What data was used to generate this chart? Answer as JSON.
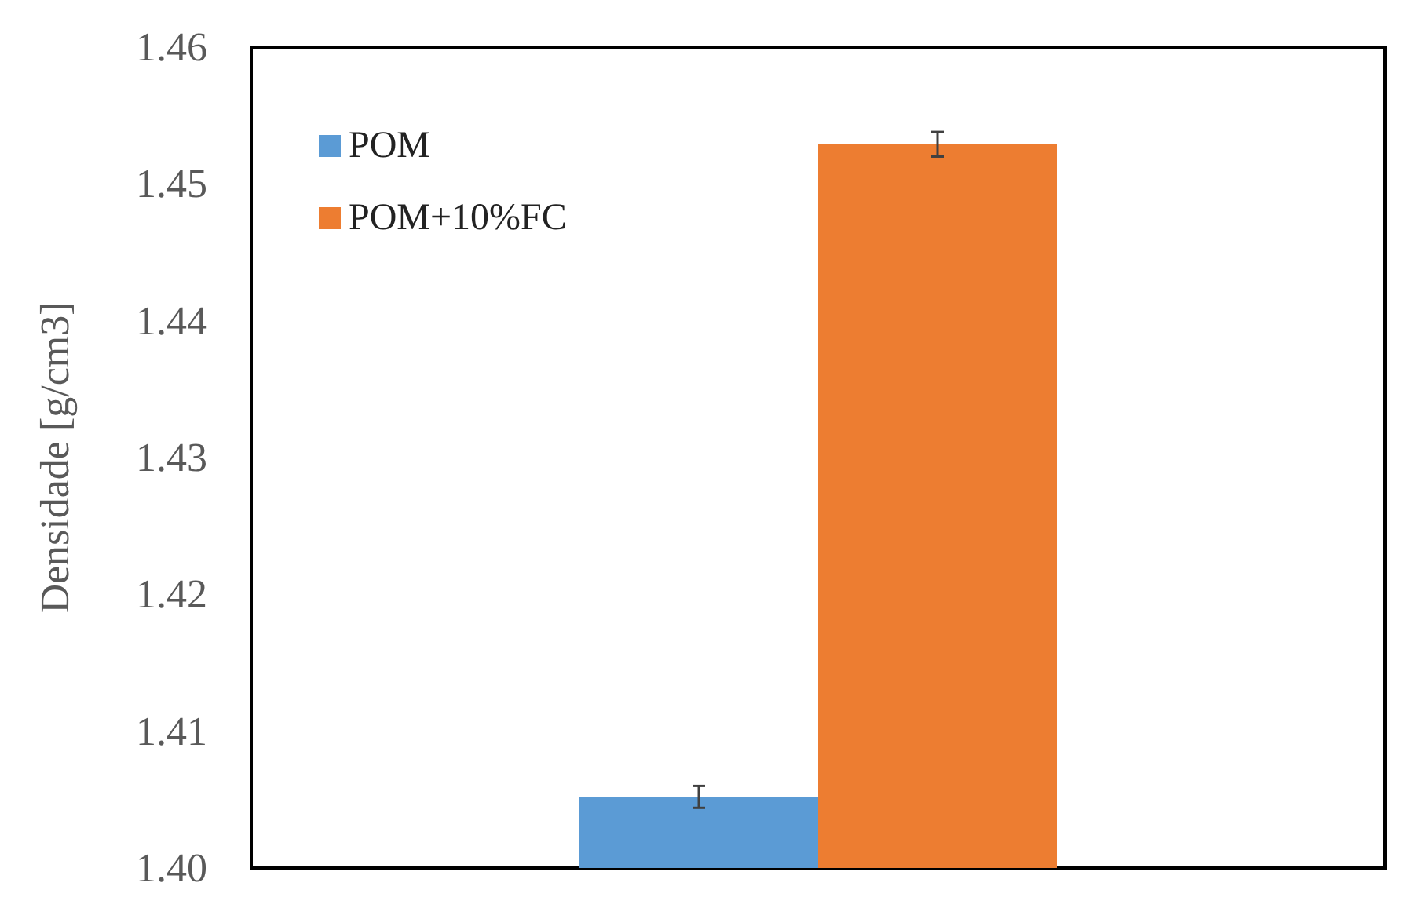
{
  "chart_data": {
    "type": "bar",
    "ylabel": "Densidade [g/cm3]",
    "categories": [
      null
    ],
    "series": [
      {
        "name": "POM",
        "color": "#5b9bd5",
        "values": [
          1.4052
        ],
        "errors": [
          0.0008
        ]
      },
      {
        "name": "POM+10%FC",
        "color": "#ed7d31",
        "values": [
          1.4529
        ],
        "errors": [
          0.0009
        ]
      }
    ],
    "ylim": [
      1.4,
      1.46
    ],
    "yticks": [
      {
        "value": 1.4,
        "label": "1.40"
      },
      1.41,
      1.42,
      1.43,
      1.44,
      1.45,
      1.46
    ],
    "grid": false,
    "legend": "top left"
  }
}
